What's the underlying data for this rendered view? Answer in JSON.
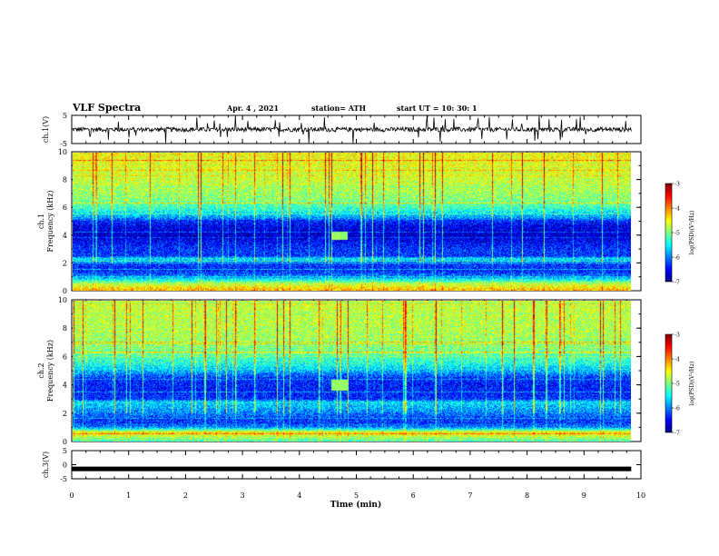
{
  "header": {
    "title": "VLF Spectra",
    "date": "Apr. 4 , 2021",
    "station": "station= ATH",
    "start": "start UT =   10: 30: 1"
  },
  "colorbar_ticks": [
    "-3",
    "-4",
    "-5",
    "-6",
    "-7"
  ],
  "colorbar_label": "log(PSD)(V²/Hz)",
  "colormap": [
    "#00007f",
    "#0000ff",
    "#007fff",
    "#00ffff",
    "#7fff7f",
    "#ffff00",
    "#ff7f00",
    "#ff0000",
    "#7f0000"
  ],
  "chart_data": [
    {
      "type": "line",
      "panel": "ch.1 waveform",
      "ylabel": "ch.1(V)",
      "ylim": [
        -5,
        5
      ],
      "yticks": [
        "5",
        "-5"
      ],
      "xlim": [
        0,
        10
      ],
      "baseline_volts": 0,
      "noise_amplitude_volts": 0.8
    },
    {
      "type": "heatmap",
      "panel": "ch.1 spectrogram",
      "ylabel": "ch.1\nFrequency (kHz)",
      "ylim": [
        0,
        10
      ],
      "yticks": [
        "10",
        "8",
        "6",
        "4",
        "2",
        "0"
      ],
      "xlim": [
        0,
        10
      ],
      "value_range": [
        -7,
        -3
      ],
      "spectral_profile_khz": [
        [
          0,
          -4.2
        ],
        [
          0.5,
          -4.8
        ],
        [
          1.0,
          -6.0
        ],
        [
          1.5,
          -6.4
        ],
        [
          2.0,
          -6.2
        ],
        [
          2.3,
          -5.5
        ],
        [
          2.5,
          -6.3
        ],
        [
          3.0,
          -6.3
        ],
        [
          3.5,
          -6.5
        ],
        [
          4.0,
          -6.7
        ],
        [
          4.5,
          -6.6
        ],
        [
          5.0,
          -6.5
        ],
        [
          5.2,
          -6.0
        ],
        [
          5.8,
          -5.4
        ],
        [
          6.5,
          -5.0
        ],
        [
          8.0,
          -4.7
        ],
        [
          10.0,
          -4.5
        ]
      ],
      "emission": {
        "t_min": [
          4.55,
          4.85
        ],
        "f_khz": [
          3.7,
          4.3
        ]
      }
    },
    {
      "type": "heatmap",
      "panel": "ch.2 spectrogram",
      "ylabel": "ch.2\nFrequency (kHz)",
      "ylim": [
        0,
        10
      ],
      "yticks": [
        "10",
        "8",
        "6",
        "4",
        "2",
        "0"
      ],
      "xlim": [
        0,
        10
      ],
      "value_range": [
        -7,
        -3
      ],
      "spectral_profile_khz": [
        [
          0,
          -5.2
        ],
        [
          0.6,
          -4.4
        ],
        [
          1.0,
          -6.0
        ],
        [
          1.5,
          -6.3
        ],
        [
          2.0,
          -6.0
        ],
        [
          2.8,
          -5.6
        ],
        [
          3.0,
          -6.3
        ],
        [
          3.5,
          -6.4
        ],
        [
          4.0,
          -6.4
        ],
        [
          4.5,
          -6.3
        ],
        [
          5.0,
          -5.8
        ],
        [
          5.5,
          -5.4
        ],
        [
          6.5,
          -5.0
        ],
        [
          8.0,
          -4.8
        ],
        [
          10.0,
          -4.7
        ]
      ],
      "emission": {
        "t_min": [
          4.55,
          4.85
        ],
        "f_khz": [
          3.6,
          4.4
        ]
      }
    },
    {
      "type": "line",
      "panel": "ch.3 waveform",
      "ylabel": "ch.3(V)",
      "ylim": [
        -5,
        5
      ],
      "yticks": [
        "5",
        "0",
        "-5"
      ],
      "xlim": [
        0,
        10
      ],
      "baseline_volts": -1.5
    }
  ],
  "xaxis": {
    "label": "Time (min)",
    "ticks": [
      "0",
      "1",
      "2",
      "3",
      "4",
      "5",
      "6",
      "7",
      "8",
      "9",
      "10"
    ],
    "data_end_min": 9.83
  }
}
